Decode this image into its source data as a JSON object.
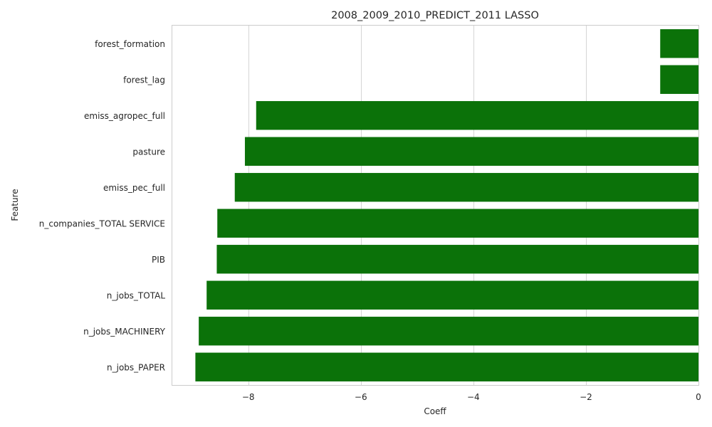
{
  "chart_data": {
    "type": "bar",
    "orientation": "horizontal",
    "title": "2008_2009_2010_PREDICT_2011 LASSO",
    "xlabel": "Coeff",
    "ylabel": "Feature",
    "categories": [
      "forest_formation",
      "forest_lag",
      "emiss_agropec_full",
      "pasture",
      "emiss_pec_full",
      "n_companies_TOTAL SERVICE",
      "PIB",
      "n_jobs_TOTAL",
      "n_jobs_MACHINERY",
      "n_jobs_PAPER"
    ],
    "values": [
      -0.68,
      -0.68,
      -7.86,
      -8.06,
      -8.24,
      -8.55,
      -8.56,
      -8.74,
      -8.88,
      -8.94
    ],
    "xlim": [
      -9.35,
      0
    ],
    "xticks": [
      -8,
      -6,
      -4,
      -2,
      0
    ],
    "xtick_labels": [
      "−8",
      "−6",
      "−4",
      "−2",
      "0"
    ],
    "grid": true,
    "bar_color": "#0b7209"
  }
}
